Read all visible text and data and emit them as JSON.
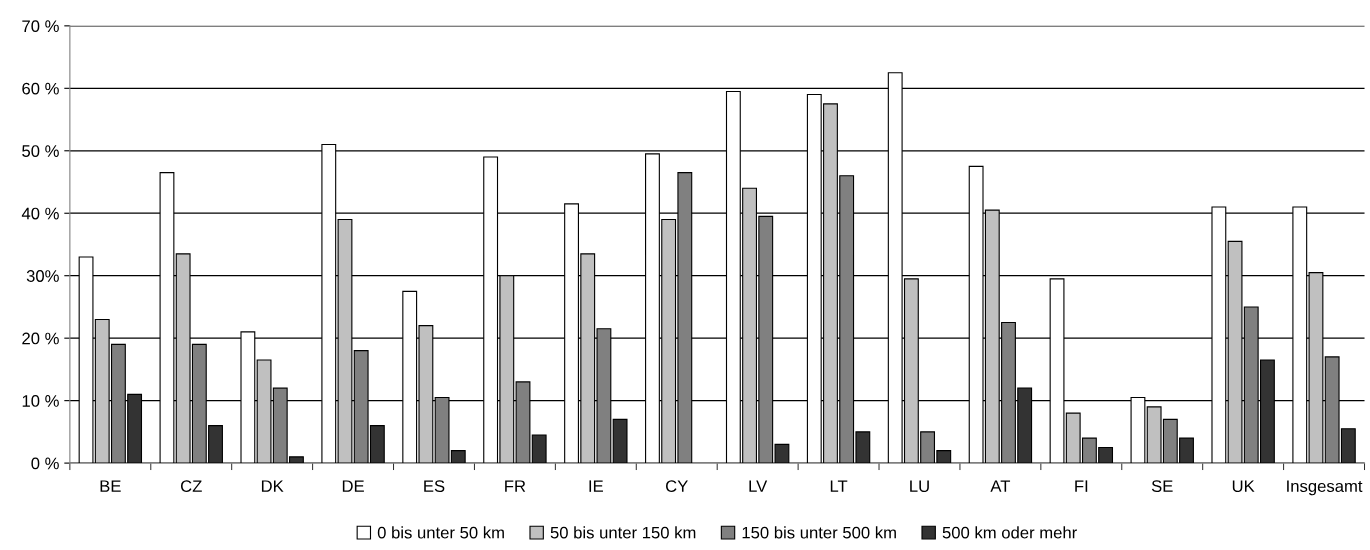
{
  "chart_data": {
    "type": "bar",
    "categories": [
      "BE",
      "CZ",
      "DK",
      "DE",
      "ES",
      "FR",
      "IE",
      "CY",
      "LV",
      "LT",
      "LU",
      "AT",
      "FI",
      "SE",
      "UK",
      "Insgesamt"
    ],
    "series": [
      {
        "name": "0 bis unter 50 km",
        "color": "#ffffff",
        "values": [
          33,
          46.5,
          21,
          51,
          27.5,
          49,
          41.5,
          49.5,
          59.5,
          59,
          62.5,
          47.5,
          29.5,
          10.5,
          41,
          41
        ]
      },
      {
        "name": "50 bis unter 150 km",
        "color": "#c0c0c0",
        "values": [
          23,
          33.5,
          16.5,
          39,
          22,
          30,
          33.5,
          39,
          44,
          57.5,
          29.5,
          40.5,
          8,
          9,
          35.5,
          30.5
        ]
      },
      {
        "name": "150 bis unter 500 km",
        "color": "#808080",
        "values": [
          19,
          19,
          12,
          18,
          10.5,
          13,
          21.5,
          46.5,
          39.5,
          46,
          5,
          22.5,
          4,
          7,
          25,
          17
        ]
      },
      {
        "name": "500 km oder mehr",
        "color": "#333333",
        "values": [
          11,
          6,
          1,
          6,
          2,
          4.5,
          7,
          null,
          3,
          5,
          2,
          12,
          2.5,
          4,
          16.5,
          5.5
        ]
      }
    ],
    "ylim": [
      0,
      70
    ],
    "yticks": [
      {
        "value": 0,
        "label": "0 %"
      },
      {
        "value": 10,
        "label": "10 %"
      },
      {
        "value": 20,
        "label": "20 %"
      },
      {
        "value": 30,
        "label": "30%"
      },
      {
        "value": 40,
        "label": "40 %"
      },
      {
        "value": 50,
        "label": "50 %"
      },
      {
        "value": 60,
        "label": "60 %"
      },
      {
        "value": 70,
        "label": "70 %"
      }
    ],
    "grid": "y",
    "legend": "bottom"
  }
}
